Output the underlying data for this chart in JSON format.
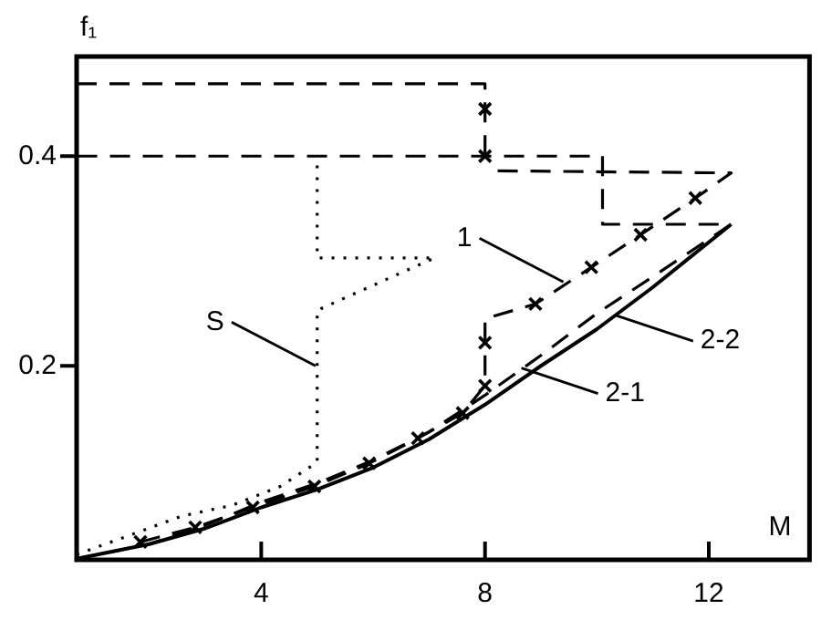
{
  "chart_data": {
    "type": "line",
    "xlabel": "M",
    "ylabel": "f₁",
    "xlim": [
      0.7,
      13.8
    ],
    "ylim": [
      0.015,
      0.495
    ],
    "xticks": [
      4,
      8,
      12
    ],
    "yticks": [
      0.2,
      0.4
    ],
    "grid": false,
    "legend": false,
    "marker": "none",
    "series": [
      {
        "color": "#000000",
        "line_style": "solid",
        "x": [
          0.7,
          2,
          3,
          4,
          5,
          6,
          7,
          8,
          9,
          10,
          11,
          12.4
        ],
        "values": [
          0.016,
          0.03,
          0.045,
          0.065,
          0.082,
          0.103,
          0.13,
          0.163,
          0.2,
          0.235,
          0.275,
          0.335
        ]
      },
      {
        "color": "#000000",
        "line_style": "dashed",
        "x": [
          0.7,
          2,
          3,
          4,
          5,
          6,
          7,
          8,
          9,
          10,
          11,
          12.4,
          10.1,
          10.1,
          0.7
        ],
        "values": [
          0.016,
          0.03,
          0.048,
          0.07,
          0.088,
          0.11,
          0.137,
          0.172,
          0.21,
          0.25,
          0.285,
          0.335,
          0.335,
          0.4,
          0.4
        ]
      },
      {
        "color": "#000000",
        "line_style": "dashed",
        "x": [
          0.7,
          8,
          8
        ],
        "values": [
          0.469,
          0.469,
          0.4
        ]
      },
      {
        "color": "#000000",
        "line_style": "dashed",
        "x": [
          1.84,
          2.82,
          3.85,
          4.95,
          5.93,
          6.8,
          7.6,
          8,
          8,
          8,
          8.9,
          9.9,
          10.78,
          11.76,
          12.4,
          8.2
        ],
        "values": [
          0.032,
          0.046,
          0.065,
          0.085,
          0.107,
          0.131,
          0.155,
          0.181,
          0.222,
          0.245,
          0.259,
          0.294,
          0.325,
          0.36,
          0.384,
          0.386
        ]
      },
      {
        "type": "scatter",
        "color": "#000000",
        "marker": "cross",
        "x": [
          1.84,
          2.82,
          3.85,
          4.95,
          5.93,
          6.8,
          7.6,
          8,
          8,
          8.9,
          9.9,
          10.78,
          11.76,
          8,
          8
        ],
        "values": [
          0.032,
          0.046,
          0.065,
          0.085,
          0.107,
          0.131,
          0.155,
          0.181,
          0.222,
          0.259,
          0.294,
          0.325,
          0.36,
          0.445,
          0.4
        ]
      },
      {
        "color": "#000000",
        "line_style": "dotted",
        "x": [
          0.7,
          2.6,
          3.48,
          4.34,
          5,
          5,
          7.1,
          5,
          5
        ],
        "values": [
          0.02,
          0.057,
          0.067,
          0.085,
          0.108,
          0.253,
          0.303,
          0.303,
          0.4
        ]
      }
    ],
    "annotations": [
      {
        "text": "S",
        "x": 4.97,
        "y": 0.2
      },
      {
        "text": "2-1",
        "x": 8.65,
        "y": 0.198
      },
      {
        "text": "1",
        "x": 9.4,
        "y": 0.28
      },
      {
        "text": "2-2",
        "x": 10.35,
        "y": 0.248
      }
    ]
  }
}
